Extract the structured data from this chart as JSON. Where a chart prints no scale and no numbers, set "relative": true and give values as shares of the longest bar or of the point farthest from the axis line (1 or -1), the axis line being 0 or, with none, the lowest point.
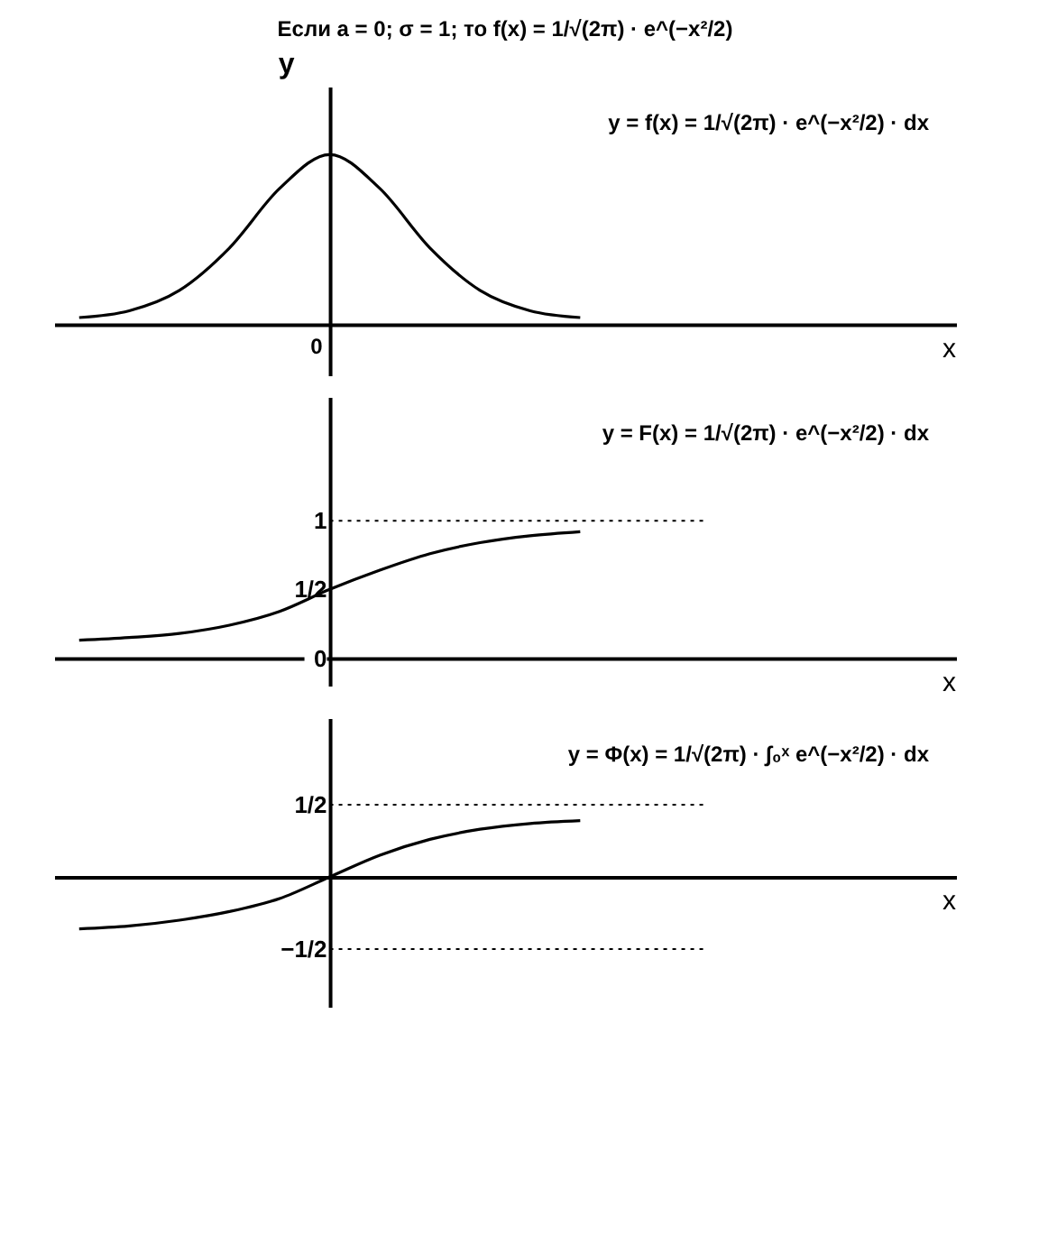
{
  "chart_data": [
    {
      "type": "line",
      "title": "Если a = 0;  σ = 1;      то      f(x) = 1/√(2π) · e^(−x²/2)",
      "ylabel": "y",
      "xlabel": "x",
      "relative": true,
      "categories": [
        null,
        null,
        null,
        null,
        null,
        null,
        null,
        null,
        null,
        null,
        null,
        null,
        null,
        null,
        null,
        null,
        null,
        null
      ],
      "series": [
        {
          "color": "#000000",
          "values": [
            0.04,
            0.08,
            0.2,
            0.45,
            0.8,
            1,
            0.8,
            0.45,
            0.2,
            0.08,
            0.04,
            null,
            null,
            null,
            null,
            null,
            null,
            null
          ]
        }
      ],
      "annotations": [
        "y = f(x) = 1/√(2π) · e^(−x²/2) · dx",
        "0"
      ]
    },
    {
      "type": "line",
      "xlabel": "x",
      "categories": [
        null,
        null,
        null,
        null,
        null,
        null,
        null,
        null,
        null,
        null,
        null,
        null,
        null,
        null,
        null,
        null,
        null,
        null
      ],
      "ylim": [
        -0.2,
        1.9
      ],
      "yticks": [
        {
          "value": 0,
          "label": "0"
        },
        {
          "value": 0.5,
          "label": "1/2"
        },
        {
          "value": 1,
          "label": "1"
        }
      ],
      "series": [
        {
          "color": "#000000",
          "values": [
            0.13,
            0.15,
            0.18,
            0.24,
            0.34,
            0.5,
            0.64,
            0.76,
            0.84,
            0.89,
            0.92,
            null,
            null,
            null,
            null,
            null,
            null,
            null
          ]
        }
      ],
      "ref_lines": [
        {
          "axis": "y",
          "value": 1,
          "label": null,
          "line_style": "dotted"
        }
      ],
      "annotations": [
        "y = F(x) = 1/√(2π) · e^(−x²/2) · dx"
      ]
    },
    {
      "type": "line",
      "xlabel": "x",
      "categories": [
        null,
        null,
        null,
        null,
        null,
        null,
        null,
        null,
        null,
        null,
        null,
        null,
        null,
        null,
        null,
        null,
        null,
        null
      ],
      "ylim": [
        -0.9,
        1.1
      ],
      "yticks": [
        {
          "value": 0.5,
          "label": "1/2"
        },
        {
          "value": -0.5,
          "label": "−1/2"
        }
      ],
      "series": [
        {
          "color": "#000000",
          "values": [
            -0.36,
            -0.34,
            -0.3,
            -0.24,
            -0.15,
            0,
            0.15,
            0.26,
            0.33,
            0.37,
            0.39,
            null,
            null,
            null,
            null,
            null,
            null,
            null
          ]
        }
      ],
      "ref_lines": [
        {
          "axis": "y",
          "value": 0.5,
          "label": null,
          "line_style": "dotted"
        },
        {
          "axis": "y",
          "value": -0.5,
          "label": null,
          "line_style": "dotted"
        }
      ],
      "annotations": [
        "y = Φ(x) = 1/√(2π) · ∫₀ˣ e^(−x²/2) · dx"
      ]
    }
  ]
}
